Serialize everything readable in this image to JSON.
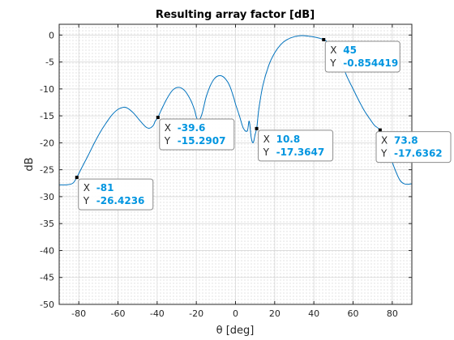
{
  "chart_data": {
    "type": "line",
    "title": "Resulting array factor [dB]",
    "xlabel": "θ [deg]",
    "ylabel": "dB",
    "xlim": [
      -90,
      90
    ],
    "ylim": [
      -50,
      2
    ],
    "xticks": [
      -80,
      -60,
      -40,
      -20,
      0,
      20,
      40,
      60,
      80
    ],
    "yticks": [
      0,
      -5,
      -10,
      -15,
      -20,
      -25,
      -30,
      -35,
      -40,
      -45,
      -50
    ],
    "grid": "minor dotted",
    "line_color": "#0072bd",
    "series": [
      {
        "x": [
          -90,
          -86,
          -83,
          -81,
          -78,
          -75,
          -72,
          -69,
          -66,
          -63,
          -60,
          -57,
          -55,
          -52,
          -49,
          -46,
          -44,
          -42,
          -41,
          -40,
          -39.6,
          -38,
          -35,
          -32,
          -29,
          -26,
          -23,
          -21,
          -20,
          -19,
          -18,
          -17,
          -16,
          -15,
          -13,
          -11,
          -9,
          -7,
          -5,
          -3,
          -1,
          0,
          2,
          4,
          6,
          7,
          8,
          9,
          10,
          10.8,
          11,
          12,
          14,
          17,
          20,
          23,
          26,
          30,
          34,
          37,
          40,
          43,
          45,
          47,
          50,
          53,
          55,
          57,
          60,
          63,
          66,
          69,
          71,
          73.8,
          76,
          78,
          80,
          82,
          84,
          86,
          88,
          90
        ],
        "y": [
          -27.8,
          -27.8,
          -27.5,
          -26.4,
          -24.3,
          -22.2,
          -20.0,
          -18.0,
          -16.3,
          -14.8,
          -13.8,
          -13.4,
          -13.6,
          -14.5,
          -15.8,
          -17.0,
          -17.3,
          -16.8,
          -16.0,
          -15.5,
          -15.29,
          -14.0,
          -11.8,
          -10.2,
          -9.7,
          -10.3,
          -12.0,
          -13.8,
          -15.2,
          -15.8,
          -15.5,
          -14.5,
          -13.0,
          -11.5,
          -9.5,
          -8.2,
          -7.6,
          -7.6,
          -8.2,
          -9.4,
          -11.5,
          -12.8,
          -15.0,
          -17.3,
          -17.8,
          -16.0,
          -19.0,
          -20.0,
          -18.5,
          -17.36,
          -16.8,
          -13.5,
          -9.3,
          -5.6,
          -3.3,
          -1.8,
          -0.9,
          -0.3,
          -0.1,
          -0.2,
          -0.35,
          -0.6,
          -0.85,
          -1.3,
          -2.6,
          -4.5,
          -6.0,
          -7.8,
          -10.0,
          -12.2,
          -14.2,
          -15.8,
          -16.8,
          -17.64,
          -19.5,
          -21.5,
          -23.6,
          -25.5,
          -27.0,
          -27.6,
          -27.7,
          -27.6
        ]
      }
    ],
    "datatips": [
      {
        "x_prefix": "X",
        "y_prefix": "Y",
        "x": -81,
        "y": -26.4236,
        "x_label": "-81",
        "y_label": "-26.4236"
      },
      {
        "x_prefix": "X",
        "y_prefix": "Y",
        "x": -39.6,
        "y": -15.2907,
        "x_label": "-39.6",
        "y_label": "-15.2907"
      },
      {
        "x_prefix": "X",
        "y_prefix": "Y",
        "x": 10.8,
        "y": -17.3647,
        "x_label": "10.8",
        "y_label": "-17.3647"
      },
      {
        "x_prefix": "X",
        "y_prefix": "Y",
        "x": 45,
        "y": -0.854419,
        "x_label": "45",
        "y_label": "-0.854419"
      },
      {
        "x_prefix": "X",
        "y_prefix": "Y",
        "x": 73.8,
        "y": -17.6362,
        "x_label": "73.8",
        "y_label": "-17.6362"
      }
    ],
    "datatip_value_color": "#0095e0"
  }
}
